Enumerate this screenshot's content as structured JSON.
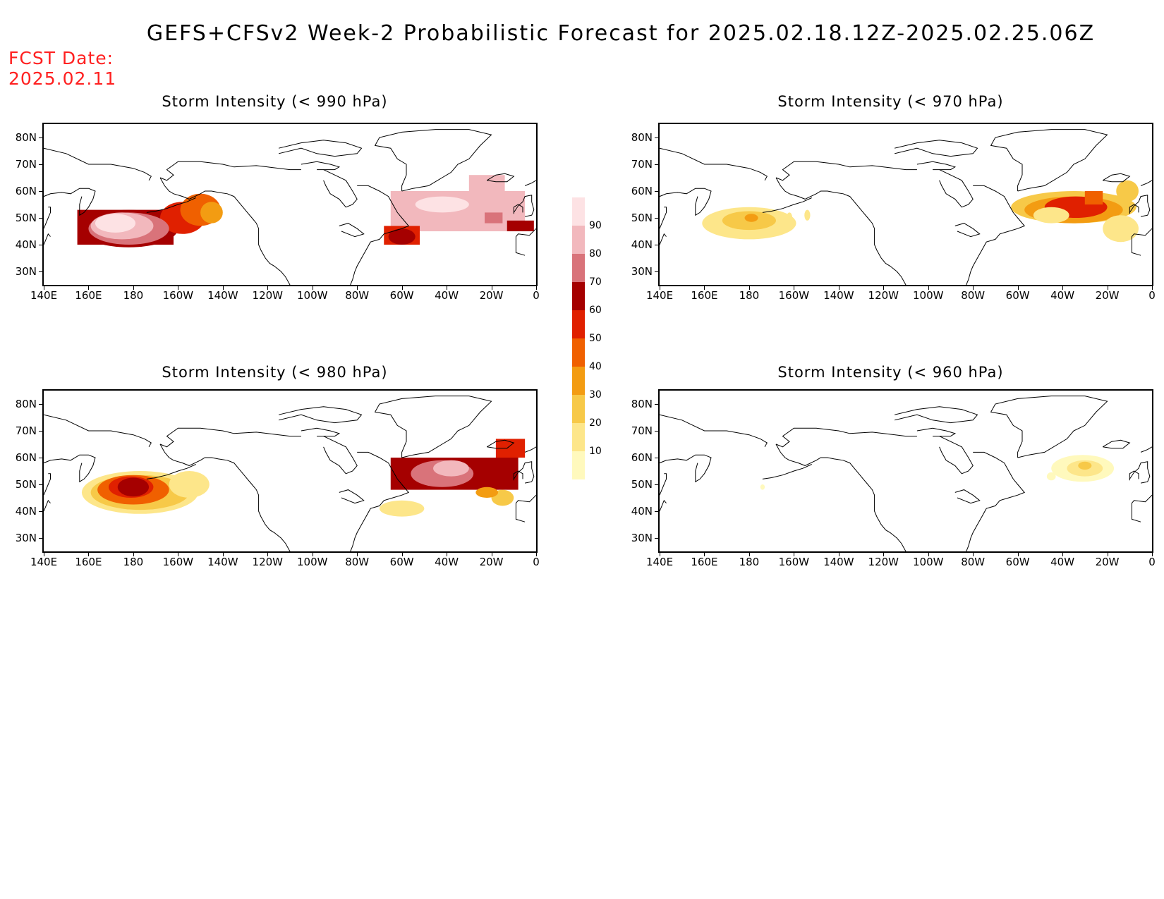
{
  "title": "GEFS+CFSv2 Week-2 Probabilistic Forecast for 2025.02.18.12Z-2025.02.25.06Z",
  "fcst_date_label": "FCST Date:",
  "fcst_date_value": "2025.02.11",
  "lat_labels": [
    "80N",
    "70N",
    "60N",
    "50N",
    "40N",
    "30N"
  ],
  "lon_labels": [
    "140E",
    "160E",
    "180",
    "160W",
    "140W",
    "120W",
    "100W",
    "80W",
    "60W",
    "40W",
    "20W",
    "0"
  ],
  "panels": [
    {
      "id": "p990",
      "title": "Storm Intensity (< 990 hPa)"
    },
    {
      "id": "p970",
      "title": "Storm Intensity (< 970 hPa)"
    },
    {
      "id": "p980",
      "title": "Storm Intensity (< 980 hPa)"
    },
    {
      "id": "p960",
      "title": "Storm Intensity (< 960 hPa)"
    }
  ],
  "colorbar": {
    "levels": [
      "10",
      "20",
      "30",
      "40",
      "50",
      "60",
      "70",
      "80",
      "90"
    ],
    "colors": [
      "#fff9bd",
      "#fde68a",
      "#f7c948",
      "#f39c12",
      "#f06000",
      "#e02000",
      "#a50000",
      "#d9737a",
      "#f2b8bd",
      "#fde2e4"
    ]
  },
  "colors": {
    "fcst_date": "#ff2020",
    "coastline": "#000000"
  }
}
